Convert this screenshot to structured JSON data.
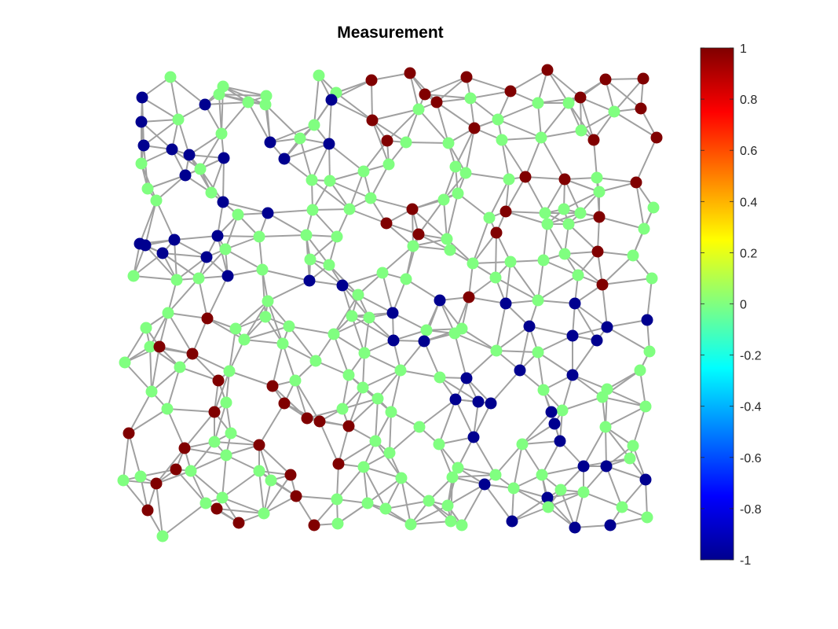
{
  "chart_data": {
    "type": "scatter",
    "subtype": "graph-signal",
    "title": "Measurement",
    "xlabel": "",
    "ylabel": "",
    "axes_visible": false,
    "grid": false,
    "node_color_levels": {
      "-1": "#00008f",
      "0": "#80ff80",
      "1": "#800000"
    },
    "edge_color": "#a0a0a0",
    "nodes": {
      "x": [],
      "y": [],
      "value": []
    },
    "colorbar": {
      "colormap": "jet",
      "clim": [
        -1,
        1
      ],
      "tick_values": [
        1,
        0.8,
        0.6,
        0.4,
        0.2,
        0,
        -0.2,
        -0.4,
        -0.6,
        -0.8,
        -1
      ],
      "tick_labels": [
        "1",
        "0.8",
        "0.6",
        "0.4",
        "0.2",
        "0",
        "-0.2",
        "-0.4",
        "-0.6",
        "-0.8",
        "-1"
      ]
    }
  }
}
